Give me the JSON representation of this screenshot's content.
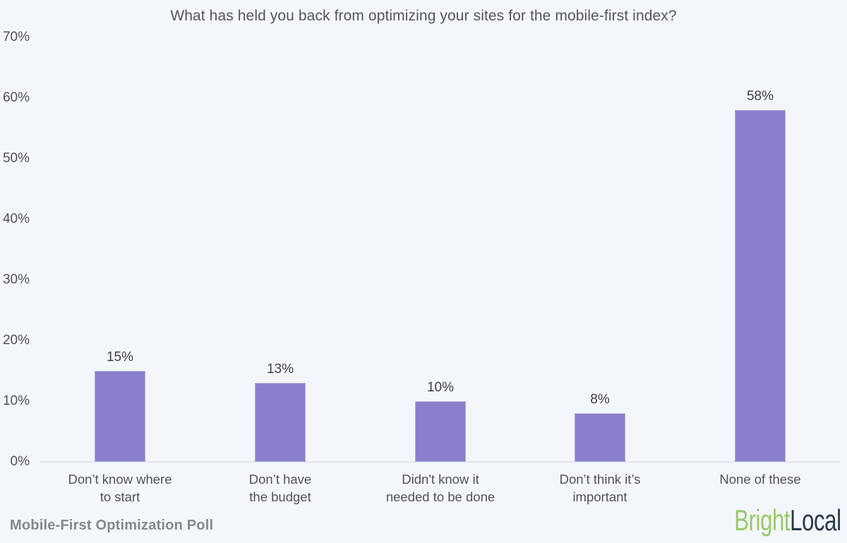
{
  "chart_data": {
    "type": "bar",
    "title": "What has held you back from optimizing your sites for the mobile-first index?",
    "categories": [
      "Don’t know where to start",
      "Don’t have the budget",
      "Didn't know it needed to be done",
      "Don’t think it’s important",
      "None of these"
    ],
    "category_lines": [
      [
        "Don’t know where",
        "to start"
      ],
      [
        "Don’t have",
        "the budget"
      ],
      [
        "Didn't know it",
        "needed to be done"
      ],
      [
        "Don’t think it’s",
        "important"
      ],
      [
        "None of these"
      ]
    ],
    "values": [
      15,
      13,
      10,
      8,
      58
    ],
    "value_labels": [
      "15%",
      "13%",
      "10%",
      "8%",
      "58%"
    ],
    "xlabel": "",
    "ylabel": "",
    "ylim": [
      0,
      70
    ],
    "ytick_step": 10,
    "yticks": [
      "0%",
      "10%",
      "20%",
      "30%",
      "40%",
      "50%",
      "60%",
      "70%"
    ],
    "grid": false,
    "legend": null,
    "bar_color": "#8b7fcd",
    "background": "#f3f6fa",
    "baseline_color": "#e3e7ec"
  },
  "footer": {
    "caption": "Mobile-First Optimization Poll",
    "logo": {
      "part1": "Bright",
      "part2": "Local",
      "part1_color": "#9cc869",
      "part2_color": "#2c3946"
    }
  }
}
